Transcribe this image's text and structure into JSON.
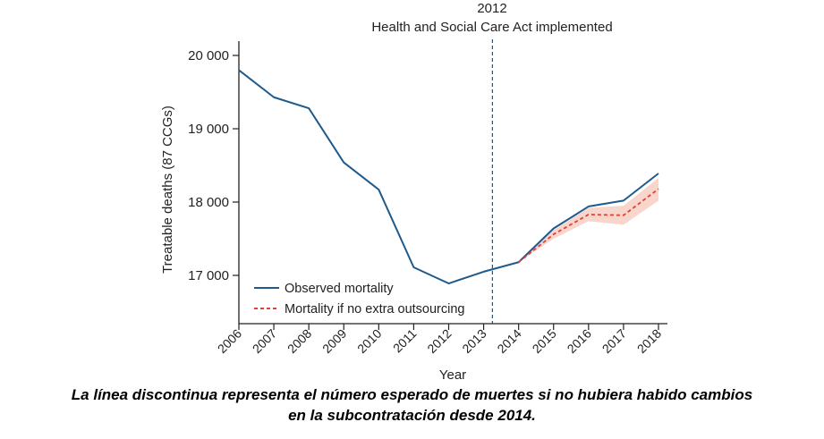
{
  "chart_data": {
    "type": "line",
    "ylabel": "Treatable deaths (87 CCGs)",
    "xlabel": "Year",
    "x": [
      2006,
      2007,
      2008,
      2009,
      2010,
      2011,
      2012,
      2013,
      2014,
      2015,
      2016,
      2017,
      2018
    ],
    "ylim": [
      16400,
      20200
    ],
    "yticks": [
      17000,
      18000,
      19000,
      20000
    ],
    "ytick_labels": [
      "17 000",
      "18 000",
      "19 000",
      "20 000"
    ],
    "grid": false,
    "legend_position": "bottom-left",
    "series": [
      {
        "name": "Observed mortality",
        "style": "solid",
        "color": "#1f5a8c",
        "x": [
          2006,
          2007,
          2008,
          2009,
          2010,
          2011,
          2012,
          2013,
          2014,
          2015,
          2016,
          2017,
          2018
        ],
        "values": [
          19800,
          19430,
          19280,
          18540,
          18170,
          17110,
          16890,
          17050,
          17180,
          17640,
          17940,
          18020,
          18390
        ]
      },
      {
        "name": "Mortality if no extra outsourcing",
        "style": "dashed",
        "color": "#e0413a",
        "x": [
          2014,
          2015,
          2016,
          2017,
          2018
        ],
        "values": [
          17180,
          17560,
          17830,
          17820,
          18180
        ],
        "ci_lower": [
          17180,
          17500,
          17740,
          17690,
          18020
        ],
        "ci_upper": [
          17180,
          17620,
          17920,
          17950,
          18330
        ]
      }
    ],
    "annotations": [
      {
        "x": 2013.25,
        "line": "dashed",
        "year_label": "2012",
        "text": "Health and Social Care Act implemented"
      }
    ]
  },
  "colors": {
    "observed": "#1f5a8c",
    "counterfactual": "#e0413a",
    "band": "#f7cfc2",
    "axis": "#222222"
  },
  "caption": {
    "line1": "La línea discontinua representa el número esperado de muertes si no hubiera habido cambios",
    "line2": "en la subcontratación desde 2014."
  }
}
